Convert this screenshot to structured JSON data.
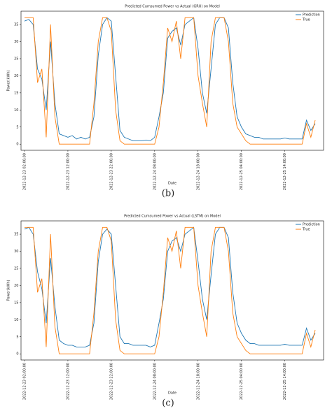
{
  "chart_data": [
    {
      "type": "line",
      "title": "Predicted Cumsumed Power vs Actual (GRU) on Model",
      "x_label": "Date",
      "y_label": "Power(kWh)",
      "caption": "(b)",
      "categories": [
        "2022-12-23 02:00:00",
        null,
        null,
        null,
        null,
        null,
        null,
        null,
        null,
        null,
        "2022-12-23 12:00:00",
        null,
        null,
        null,
        null,
        null,
        null,
        null,
        null,
        null,
        "2022-12-23 22:00:00",
        null,
        null,
        null,
        null,
        null,
        null,
        null,
        null,
        null,
        "2022-12-24 08:00:00",
        null,
        null,
        null,
        null,
        null,
        null,
        null,
        null,
        null,
        "2022-12-24 18:00:00",
        null,
        null,
        null,
        null,
        null,
        null,
        null,
        null,
        null,
        "2022-12-25 04:00:00",
        null,
        null,
        null,
        null,
        null,
        null,
        null,
        null,
        null,
        "2022-12-25 14:00:00",
        null,
        null,
        null,
        null,
        null,
        null,
        null
      ],
      "series": [
        {
          "name": "Prediction",
          "color": "#1f77b4",
          "values": [
            36,
            36.5,
            35,
            22,
            19,
            10,
            30,
            12,
            3,
            2.5,
            2,
            2.5,
            1.5,
            2,
            1.5,
            2,
            8,
            26,
            35,
            37,
            36,
            20,
            4,
            2,
            1.5,
            1,
            1,
            1,
            1.2,
            1,
            2,
            8,
            15,
            31,
            33,
            34,
            29,
            35,
            36,
            37,
            28,
            15,
            9,
            22,
            35,
            37,
            37,
            34,
            18,
            8,
            5,
            3,
            2.5,
            2,
            2,
            1.5,
            1.5,
            1.5,
            1.5,
            1.5,
            1.8,
            1.5,
            1.5,
            1.5,
            1.5,
            7,
            4,
            6
          ]
        },
        {
          "name": "True",
          "color": "#ff7f0e",
          "values": [
            37,
            37,
            37,
            18,
            22,
            2,
            35,
            8,
            0,
            0,
            0,
            0,
            0,
            0,
            0,
            0,
            12,
            30,
            37,
            37,
            33,
            10,
            1,
            0,
            0,
            0,
            0,
            0,
            0,
            0,
            0,
            5,
            18,
            34,
            30,
            36,
            25,
            37,
            37,
            37,
            20,
            12,
            5,
            30,
            37,
            37,
            37,
            30,
            12,
            5,
            3,
            1,
            0,
            0,
            0,
            0,
            0,
            0,
            0,
            0,
            0,
            0,
            0,
            0,
            0,
            6,
            2,
            7
          ]
        }
      ],
      "ylim": [
        -1.8,
        38.9
      ],
      "yticks": [
        0,
        5,
        10,
        15,
        20,
        25,
        30,
        35
      ],
      "legend": "upper right"
    },
    {
      "type": "line",
      "title": "Predicted Cumsumed Power vs Actual (LSTM) on Model",
      "x_label": "Date",
      "y_label": "Power(kWh)",
      "caption": "(c)",
      "categories": [
        "2022-12-23 02:00:00",
        null,
        null,
        null,
        null,
        null,
        null,
        null,
        null,
        null,
        "2022-12-23 12:00:00",
        null,
        null,
        null,
        null,
        null,
        null,
        null,
        null,
        null,
        "2022-12-23 22:00:00",
        null,
        null,
        null,
        null,
        null,
        null,
        null,
        null,
        null,
        "2022-12-24 08:00:00",
        null,
        null,
        null,
        null,
        null,
        null,
        null,
        null,
        null,
        "2022-12-24 18:00:00",
        null,
        null,
        null,
        null,
        null,
        null,
        null,
        null,
        null,
        "2022-12-25 04:00:00",
        null,
        null,
        null,
        null,
        null,
        null,
        null,
        null,
        null,
        "2022-12-25 14:00:00",
        null,
        null,
        null,
        null,
        null,
        null,
        null
      ],
      "series": [
        {
          "name": "Prediction",
          "color": "#1f77b4",
          "values": [
            36.5,
            37,
            35,
            24,
            19,
            9,
            28,
            14,
            4,
            3,
            2.5,
            2.5,
            2,
            2,
            2,
            2.5,
            9,
            27,
            35,
            36.5,
            35,
            20,
            5,
            3,
            3,
            2.5,
            2.5,
            2.5,
            2.5,
            2,
            2.5,
            9,
            16,
            30,
            33,
            34,
            30,
            35,
            36,
            37,
            27,
            16,
            10,
            23,
            35,
            37,
            37,
            34,
            18,
            9,
            6,
            4,
            3,
            3,
            2.5,
            2.5,
            2.5,
            2.5,
            2.5,
            2.5,
            2.8,
            2.5,
            2.5,
            2.5,
            2.5,
            7.5,
            4,
            6
          ]
        },
        {
          "name": "True",
          "color": "#ff7f0e",
          "values": [
            37,
            37,
            37,
            18,
            22,
            2,
            35,
            8,
            0,
            0,
            0,
            0,
            0,
            0,
            0,
            0,
            12,
            30,
            37,
            37,
            33,
            10,
            1,
            0,
            0,
            0,
            0,
            0,
            0,
            0,
            0,
            5,
            18,
            34,
            30,
            36,
            25,
            37,
            37,
            37,
            20,
            12,
            5,
            30,
            37,
            37,
            37,
            30,
            12,
            5,
            3,
            1,
            0,
            0,
            0,
            0,
            0,
            0,
            0,
            0,
            0,
            0,
            0,
            0,
            0,
            6,
            2,
            7
          ]
        }
      ],
      "ylim": [
        -1.8,
        38.9
      ],
      "yticks": [
        0,
        5,
        10,
        15,
        20,
        25,
        30,
        35
      ],
      "legend": "upper right"
    }
  ]
}
